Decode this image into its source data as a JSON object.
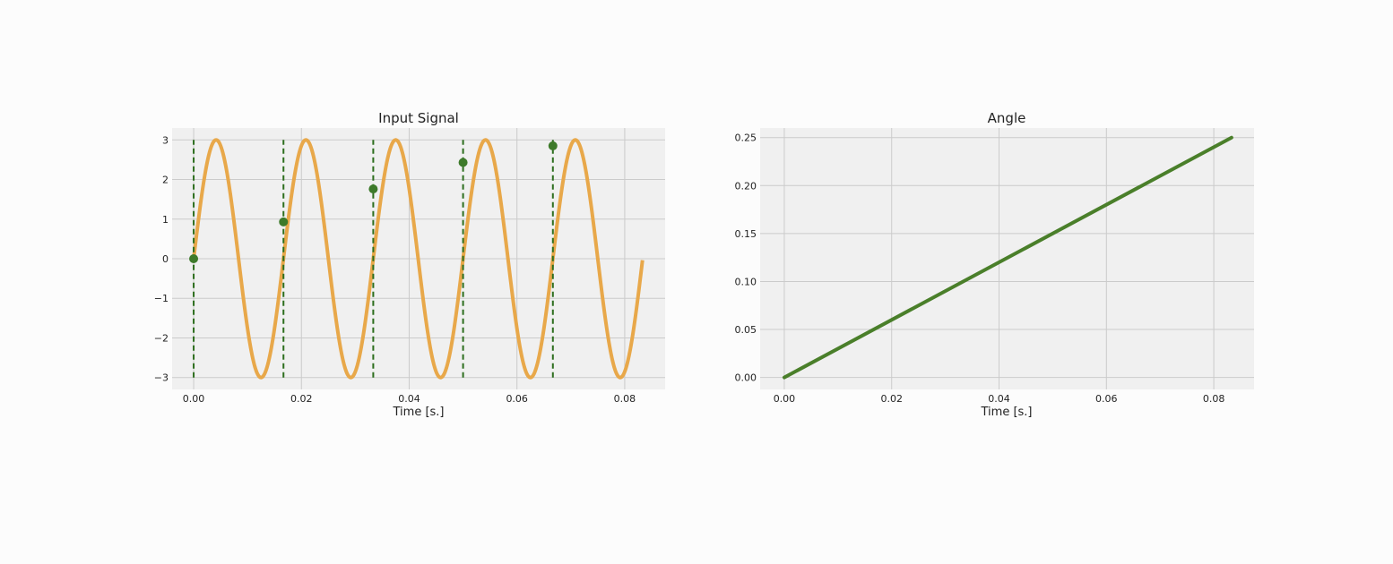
{
  "chart_data": [
    {
      "type": "line",
      "title": "Input Signal",
      "xlabel": "Time [s.]",
      "ylabel": "",
      "xlim": [
        -0.004,
        0.0875
      ],
      "ylim": [
        -3.3,
        3.3
      ],
      "xticks": [
        0.0,
        0.02,
        0.04,
        0.06,
        0.08
      ],
      "xtick_labels": [
        "0.00",
        "0.02",
        "0.04",
        "0.06",
        "0.08"
      ],
      "yticks": [
        3,
        2,
        1,
        0,
        -1,
        -2,
        -3
      ],
      "ytick_labels": [
        "3",
        "2",
        "1",
        "0",
        "−1",
        "−2",
        "−3"
      ],
      "grid": true,
      "series": [
        {
          "type": "line",
          "function": "3*sin(2*pi*60*t)",
          "amplitude": 3,
          "frequency_hz": 60,
          "t_range": [
            0,
            0.0833
          ],
          "color": "#e8a84a"
        },
        {
          "type": "vlines",
          "x": [
            0.0,
            0.01667,
            0.03333,
            0.05,
            0.06667
          ],
          "ymin": -3,
          "ymax": 3,
          "style": "dashed",
          "color": "#2d6e1e"
        },
        {
          "type": "scatter",
          "x": [
            0.0,
            0.01667,
            0.03333,
            0.05,
            0.06667
          ],
          "y": [
            0.0,
            0.93,
            1.76,
            2.43,
            2.85
          ],
          "color": "#3d7a2a"
        }
      ]
    },
    {
      "type": "line",
      "title": "Angle",
      "xlabel": "Time [s.]",
      "ylabel": "",
      "xlim": [
        -0.0045,
        0.0875
      ],
      "ylim": [
        -0.0125,
        0.26
      ],
      "xticks": [
        0.0,
        0.02,
        0.04,
        0.06,
        0.08
      ],
      "xtick_labels": [
        "0.00",
        "0.02",
        "0.04",
        "0.06",
        "0.08"
      ],
      "yticks": [
        0.25,
        0.2,
        0.15,
        0.1,
        0.05,
        0.0
      ],
      "ytick_labels": [
        "0.25",
        "0.20",
        "0.15",
        "0.10",
        "0.05",
        "0.00"
      ],
      "grid": true,
      "series": [
        {
          "type": "line",
          "x": [
            0.0,
            0.0833
          ],
          "y": [
            0.0,
            0.25
          ],
          "color": "#4a7f2a"
        }
      ]
    }
  ]
}
